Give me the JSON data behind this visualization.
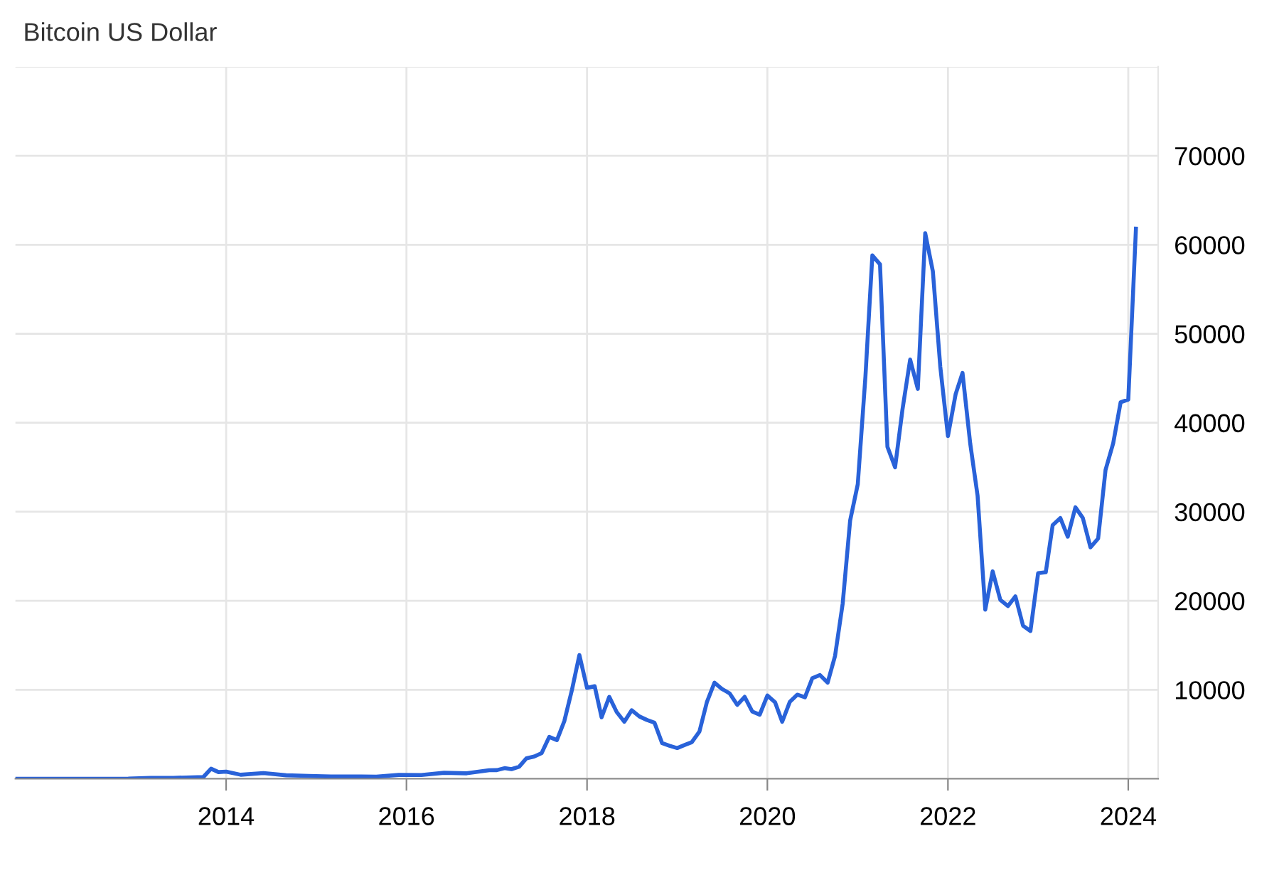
{
  "chart_data": {
    "type": "line",
    "title": "Bitcoin US Dollar",
    "x": [
      "2011-09",
      "2012-01",
      "2012-06",
      "2012-12",
      "2013-03",
      "2013-06",
      "2013-10",
      "2013-11",
      "2013-12",
      "2014-01",
      "2014-03",
      "2014-06",
      "2014-09",
      "2014-12",
      "2015-03",
      "2015-06",
      "2015-09",
      "2015-12",
      "2016-03",
      "2016-06",
      "2016-09",
      "2016-12",
      "2017-01",
      "2017-02",
      "2017-03",
      "2017-04",
      "2017-05",
      "2017-06",
      "2017-07",
      "2017-08",
      "2017-09",
      "2017-10",
      "2017-11",
      "2017-12",
      "2018-01",
      "2018-02",
      "2018-03",
      "2018-04",
      "2018-05",
      "2018-06",
      "2018-07",
      "2018-08",
      "2018-09",
      "2018-10",
      "2018-11",
      "2018-12",
      "2019-01",
      "2019-02",
      "2019-03",
      "2019-04",
      "2019-05",
      "2019-06",
      "2019-07",
      "2019-08",
      "2019-09",
      "2019-10",
      "2019-11",
      "2019-12",
      "2020-01",
      "2020-02",
      "2020-03",
      "2020-04",
      "2020-05",
      "2020-06",
      "2020-07",
      "2020-08",
      "2020-09",
      "2020-10",
      "2020-11",
      "2020-12",
      "2021-01",
      "2021-02",
      "2021-03",
      "2021-04",
      "2021-05",
      "2021-06",
      "2021-07",
      "2021-08",
      "2021-09",
      "2021-10",
      "2021-11",
      "2021-12",
      "2022-01",
      "2022-02",
      "2022-03",
      "2022-04",
      "2022-05",
      "2022-06",
      "2022-07",
      "2022-08",
      "2022-09",
      "2022-10",
      "2022-11",
      "2022-12",
      "2023-01",
      "2023-02",
      "2023-03",
      "2023-04",
      "2023-05",
      "2023-06",
      "2023-07",
      "2023-08",
      "2023-09",
      "2023-10",
      "2023-11",
      "2023-12",
      "2024-01",
      "2024-02"
    ],
    "series": [
      {
        "color": "#2962d9",
        "values": [
          5,
          6,
          7,
          13,
          90,
          100,
          200,
          1130,
          750,
          800,
          450,
          640,
          390,
          320,
          250,
          260,
          240,
          430,
          420,
          670,
          610,
          960,
          970,
          1190,
          1080,
          1350,
          2300,
          2500,
          2870,
          4700,
          4340,
          6470,
          10000,
          13900,
          10200,
          10400,
          6900,
          9200,
          7500,
          6400,
          7700,
          7000,
          6600,
          6300,
          4000,
          3700,
          3450,
          3800,
          4100,
          5300,
          8600,
          10800,
          10100,
          9600,
          8300,
          9200,
          7550,
          7200,
          9350,
          8600,
          6400,
          8650,
          9450,
          9150,
          11300,
          11650,
          10800,
          13800,
          19700,
          29000,
          33100,
          45200,
          58800,
          57800,
          37300,
          35000,
          41500,
          47100,
          43800,
          61300,
          57000,
          46300,
          38500,
          43200,
          45600,
          37700,
          31800,
          19000,
          23300,
          20100,
          19400,
          20500,
          17200,
          16600,
          23100,
          23200,
          28500,
          29300,
          27200,
          30500,
          29300,
          26000,
          27000,
          34700,
          37700,
          42300,
          42600,
          61800
        ]
      }
    ],
    "xlim": [
      "2011-09",
      "2024-05"
    ],
    "xticks": [
      "2014",
      "2016",
      "2018",
      "2020",
      "2022",
      "2024"
    ],
    "ylim": [
      0,
      80000
    ],
    "yticks": [
      {
        "value": 0,
        "label": null
      },
      10000,
      20000,
      30000,
      40000,
      50000,
      60000,
      70000,
      {
        "value": 80000,
        "label": null
      }
    ],
    "grid": true,
    "marker": "none",
    "line_style": "solid",
    "legend": false
  }
}
